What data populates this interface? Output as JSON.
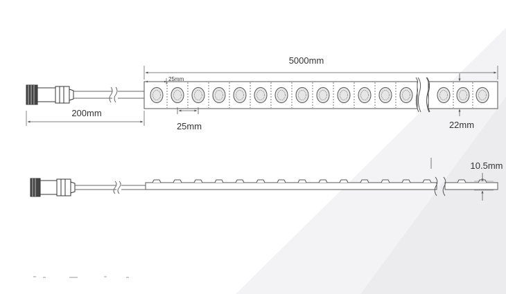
{
  "diagram": {
    "top_view": {
      "total_length": "5000mm",
      "pitch_small": "25mm",
      "pitch": "25mm",
      "lead_length": "200mm",
      "width": "22mm",
      "led_count_left": 13,
      "led_count_right": 3
    },
    "side_view": {
      "height": "10.5mm",
      "bump_count_left": 14,
      "bump_count_right": 2
    },
    "colors": {
      "line": "#555555",
      "text": "#333333",
      "led_fill": "#e6e6e6",
      "shade": "#f2f2f4"
    }
  }
}
